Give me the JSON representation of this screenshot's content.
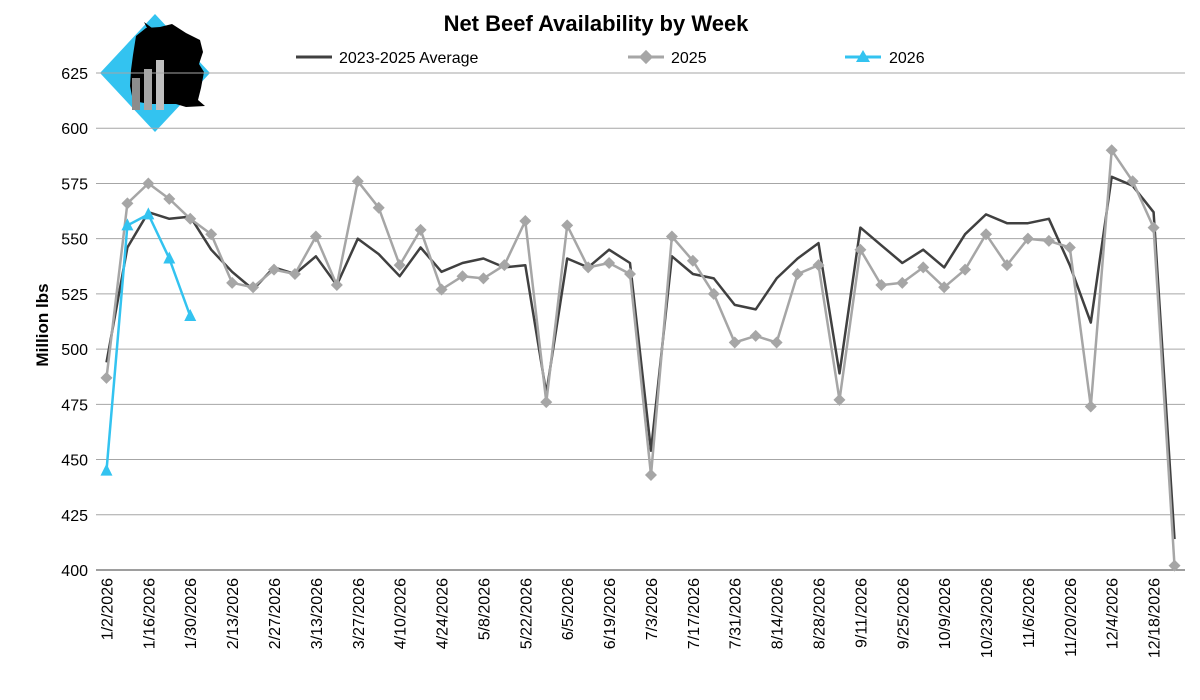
{
  "chart_data": {
    "type": "line",
    "title": "Net Beef Availability by Week",
    "xlabel": "",
    "ylabel": "Million lbs",
    "ylim": [
      400,
      625
    ],
    "yticks": [
      400,
      425,
      450,
      475,
      500,
      525,
      550,
      575,
      600,
      625
    ],
    "grid": true,
    "legend_position": "top",
    "x_tick_labels": [
      "1/2/2026",
      "1/16/2026",
      "1/30/2026",
      "2/13/2026",
      "2/27/2026",
      "3/13/2026",
      "3/27/2026",
      "4/10/2026",
      "4/24/2026",
      "5/8/2026",
      "5/22/2026",
      "6/5/2026",
      "6/19/2026",
      "7/3/2026",
      "7/17/2026",
      "7/31/2026",
      "8/14/2026",
      "8/28/2026",
      "9/11/2026",
      "9/25/2026",
      "10/9/2026",
      "10/23/2026",
      "11/6/2026",
      "11/20/2026",
      "12/4/2026",
      "12/18/2026"
    ],
    "series": [
      {
        "name": "2023-2025 Average",
        "color": "#404040",
        "marker": "none",
        "values": [
          494,
          546,
          562,
          559,
          560,
          545,
          535,
          527,
          537,
          534,
          542,
          529,
          550,
          543,
          533,
          546,
          535,
          539,
          541,
          537,
          538,
          480,
          541,
          537,
          545,
          539,
          454,
          542,
          534,
          532,
          520,
          518,
          532,
          541,
          548,
          489,
          555,
          547,
          539,
          545,
          537,
          552,
          561,
          557,
          557,
          559,
          538,
          512,
          578,
          574,
          562,
          414
        ]
      },
      {
        "name": "2025",
        "color": "#a6a6a6",
        "marker": "diamond",
        "values": [
          487,
          566,
          575,
          568,
          559,
          552,
          530,
          528,
          536,
          534,
          551,
          529,
          576,
          564,
          538,
          554,
          527,
          533,
          532,
          538,
          558,
          476,
          556,
          537,
          539,
          534,
          443,
          551,
          540,
          525,
          503,
          506,
          503,
          534,
          538,
          477,
          545,
          529,
          530,
          537,
          528,
          536,
          552,
          538,
          550,
          549,
          546,
          474,
          590,
          576,
          555,
          402
        ]
      },
      {
        "name": "2026",
        "color": "#33c3f0",
        "marker": "triangle",
        "values": [
          445,
          556,
          561,
          541,
          515
        ]
      }
    ]
  }
}
